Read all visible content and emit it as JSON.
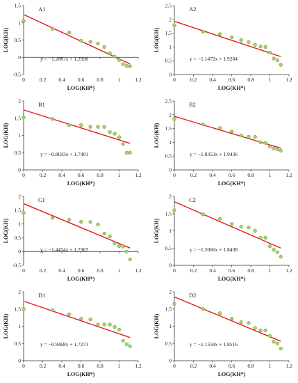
{
  "colors": {
    "marker_fill": "#a8d36a",
    "marker_stroke": "#6f9a3a",
    "fit_line": "#e41a1c",
    "axis": "#333333"
  },
  "chart_data": [
    {
      "type": "scatter",
      "panel": "A1",
      "xlabel": "LOG(KH*)",
      "ylabel": "LOG(KH)",
      "xlim": [
        0,
        1.2
      ],
      "ylim": [
        -0.5,
        1.5
      ],
      "xticks": [
        "0",
        "0.2",
        "0.4",
        "0.6",
        "0.8",
        "1",
        "1.2"
      ],
      "yticks": [
        "-0.5",
        "0",
        "0.5",
        "1",
        "1.5"
      ],
      "x": [
        0,
        0.301,
        0.477,
        0.602,
        0.699,
        0.778,
        0.845,
        0.903,
        0.954,
        1.0,
        1.041,
        1.079,
        1.114
      ],
      "y": [
        1.05,
        0.82,
        0.72,
        0.48,
        0.45,
        0.4,
        0.3,
        0.12,
        0.02,
        -0.08,
        -0.2,
        -0.25,
        -0.26
      ],
      "fit": {
        "slope": -1.2867,
        "intercept": 1.2398,
        "x_range": [
          0,
          1.114
        ]
      },
      "equation": "y = −1.2867x + 1.2398"
    },
    {
      "type": "scatter",
      "panel": "A2",
      "xlabel": "LOG(KH*)",
      "ylabel": "LOG(KH)",
      "xlim": [
        0,
        1.2
      ],
      "ylim": [
        0,
        2.5
      ],
      "xticks": [
        "0",
        "0.2",
        "0.4",
        "0.6",
        "0.8",
        "1",
        "1.2"
      ],
      "yticks": [
        "0",
        "0.5",
        "1",
        "1.5",
        "2",
        "2.5"
      ],
      "x": [
        0,
        0.301,
        0.477,
        0.602,
        0.699,
        0.778,
        0.845,
        0.903,
        0.954,
        1.0,
        1.041,
        1.079,
        1.114
      ],
      "y": [
        1.78,
        1.55,
        1.47,
        1.35,
        1.25,
        1.18,
        1.08,
        1.02,
        1.0,
        0.8,
        0.58,
        0.52,
        0.35
      ],
      "fit": {
        "slope": -1.1472,
        "intercept": 1.9284,
        "x_range": [
          0,
          1.114
        ]
      },
      "equation": "y = −1.1472x + 1.9284"
    },
    {
      "type": "scatter",
      "panel": "B1",
      "xlabel": "LOG(KH*)",
      "ylabel": "LOG(KH)",
      "xlim": [
        0,
        1.2
      ],
      "ylim": [
        0,
        2
      ],
      "xticks": [
        "0",
        "0.2",
        "0.4",
        "0.6",
        "0.8",
        "1",
        "1.2"
      ],
      "yticks": [
        "0",
        "0.5",
        "1",
        "1.5",
        "2"
      ],
      "x": [
        0,
        0.301,
        0.477,
        0.602,
        0.699,
        0.778,
        0.845,
        0.903,
        0.954,
        1.0,
        1.041,
        1.079,
        1.114
      ],
      "y": [
        1.52,
        1.48,
        1.3,
        1.3,
        1.25,
        1.25,
        1.25,
        1.1,
        1.05,
        0.95,
        0.75,
        0.5,
        0.5
      ],
      "fit": {
        "slope": -0.8693,
        "intercept": 1.7401,
        "x_range": [
          0,
          1.114
        ]
      },
      "equation": "y = −0.8693x + 1.7401"
    },
    {
      "type": "scatter",
      "panel": "B2",
      "xlabel": "LOG(KH*)",
      "ylabel": "LOG(KH)",
      "xlim": [
        0,
        1.2
      ],
      "ylim": [
        0,
        2.5
      ],
      "xticks": [
        "0",
        "0.2",
        "0.4",
        "0.6",
        "0.8",
        "1",
        "1.2"
      ],
      "yticks": [
        "0",
        "0.5",
        "1",
        "1.5",
        "2",
        "2.5"
      ],
      "x": [
        0,
        0.301,
        0.477,
        0.602,
        0.699,
        0.778,
        0.845,
        0.903,
        0.954,
        1.0,
        1.041,
        1.079,
        1.114
      ],
      "y": [
        1.85,
        1.65,
        1.52,
        1.4,
        1.25,
        1.2,
        1.2,
        1.0,
        0.98,
        0.85,
        0.78,
        0.75,
        0.7
      ],
      "fit": {
        "slope": -1.0353,
        "intercept": 1.9436,
        "x_range": [
          0,
          1.114
        ]
      },
      "equation": "y = −1.0353x + 1.9436"
    },
    {
      "type": "scatter",
      "panel": "C1",
      "xlabel": "LOG(KH*)",
      "ylabel": "LOG(KH)",
      "xlim": [
        0,
        1.2
      ],
      "ylim": [
        -0.5,
        2
      ],
      "xticks": [
        "0",
        "0.2",
        "0.4",
        "0.6",
        "0.8",
        "1",
        "1.2"
      ],
      "yticks": [
        "-0.5",
        "0",
        "0.5",
        "1",
        "1.5",
        "2"
      ],
      "x": [
        0,
        0.301,
        0.477,
        0.602,
        0.699,
        0.778,
        0.845,
        0.903,
        0.954,
        1.0,
        1.041,
        1.079,
        1.114
      ],
      "y": [
        1.4,
        1.22,
        1.15,
        1.08,
        1.07,
        0.98,
        0.65,
        0.55,
        0.3,
        0.2,
        0.18,
        0.0,
        -0.28
      ],
      "fit": {
        "slope": -1.4454,
        "intercept": 1.7367,
        "x_range": [
          0,
          1.114
        ]
      },
      "equation": "y = −1.4454x + 1.7367"
    },
    {
      "type": "scatter",
      "panel": "C2",
      "xlabel": "LOG(KH*)",
      "ylabel": "LOG(KH)",
      "xlim": [
        0,
        1.2
      ],
      "ylim": [
        0,
        2
      ],
      "xticks": [
        "0",
        "0.2",
        "0.4",
        "0.6",
        "0.8",
        "1",
        "1.2"
      ],
      "yticks": [
        "0",
        "0.5",
        "1",
        "1.5",
        "2"
      ],
      "x": [
        0,
        0.301,
        0.477,
        0.602,
        0.699,
        0.778,
        0.845,
        0.903,
        0.954,
        1.0,
        1.041,
        1.079,
        1.114
      ],
      "y": [
        1.6,
        1.48,
        1.35,
        1.2,
        1.12,
        1.1,
        1.0,
        0.8,
        0.8,
        0.55,
        0.45,
        0.38,
        0.25
      ],
      "fit": {
        "slope": -1.2066,
        "intercept": 1.8438,
        "x_range": [
          0,
          1.114
        ]
      },
      "equation": "y = −1.2066x + 1.8438"
    },
    {
      "type": "scatter",
      "panel": "D1",
      "xlabel": "LOG(KH*)",
      "ylabel": "LOG(KH)",
      "xlim": [
        0,
        1.2
      ],
      "ylim": [
        0,
        2
      ],
      "xticks": [
        "0",
        "0.2",
        "0.4",
        "0.6",
        "0.8",
        "1",
        "1.2"
      ],
      "yticks": [
        "0",
        "0.5",
        "1",
        "1.5",
        "2"
      ],
      "x": [
        0,
        0.301,
        0.477,
        0.602,
        0.699,
        0.778,
        0.845,
        0.903,
        0.954,
        1.0,
        1.041,
        1.079,
        1.114
      ],
      "y": [
        1.5,
        1.47,
        1.35,
        1.22,
        1.2,
        1.05,
        1.05,
        1.05,
        0.98,
        0.9,
        0.58,
        0.48,
        0.42
      ],
      "fit": {
        "slope": -0.9468,
        "intercept": 1.7273,
        "x_range": [
          0,
          1.114
        ]
      },
      "equation": "y = −0.9468x + 1.7273"
    },
    {
      "type": "scatter",
      "panel": "D2",
      "xlabel": "LOG(KH*)",
      "ylabel": "LOG(KH)",
      "xlim": [
        0,
        1.2
      ],
      "ylim": [
        0,
        2
      ],
      "xticks": [
        "0",
        "0.2",
        "0.4",
        "0.6",
        "0.8",
        "1",
        "1.2"
      ],
      "yticks": [
        "0",
        "0.5",
        "1",
        "1.5",
        "2"
      ],
      "x": [
        0,
        0.301,
        0.477,
        0.602,
        0.699,
        0.778,
        0.845,
        0.903,
        0.954,
        1.0,
        1.041,
        1.079,
        1.114
      ],
      "y": [
        1.65,
        1.5,
        1.38,
        1.22,
        1.12,
        1.1,
        0.95,
        0.88,
        0.88,
        0.72,
        0.55,
        0.5,
        0.35
      ],
      "fit": {
        "slope": -1.1558,
        "intercept": 1.8516,
        "x_range": [
          0,
          1.114
        ]
      },
      "equation": "y = −1.1558x + 1.8516"
    }
  ]
}
